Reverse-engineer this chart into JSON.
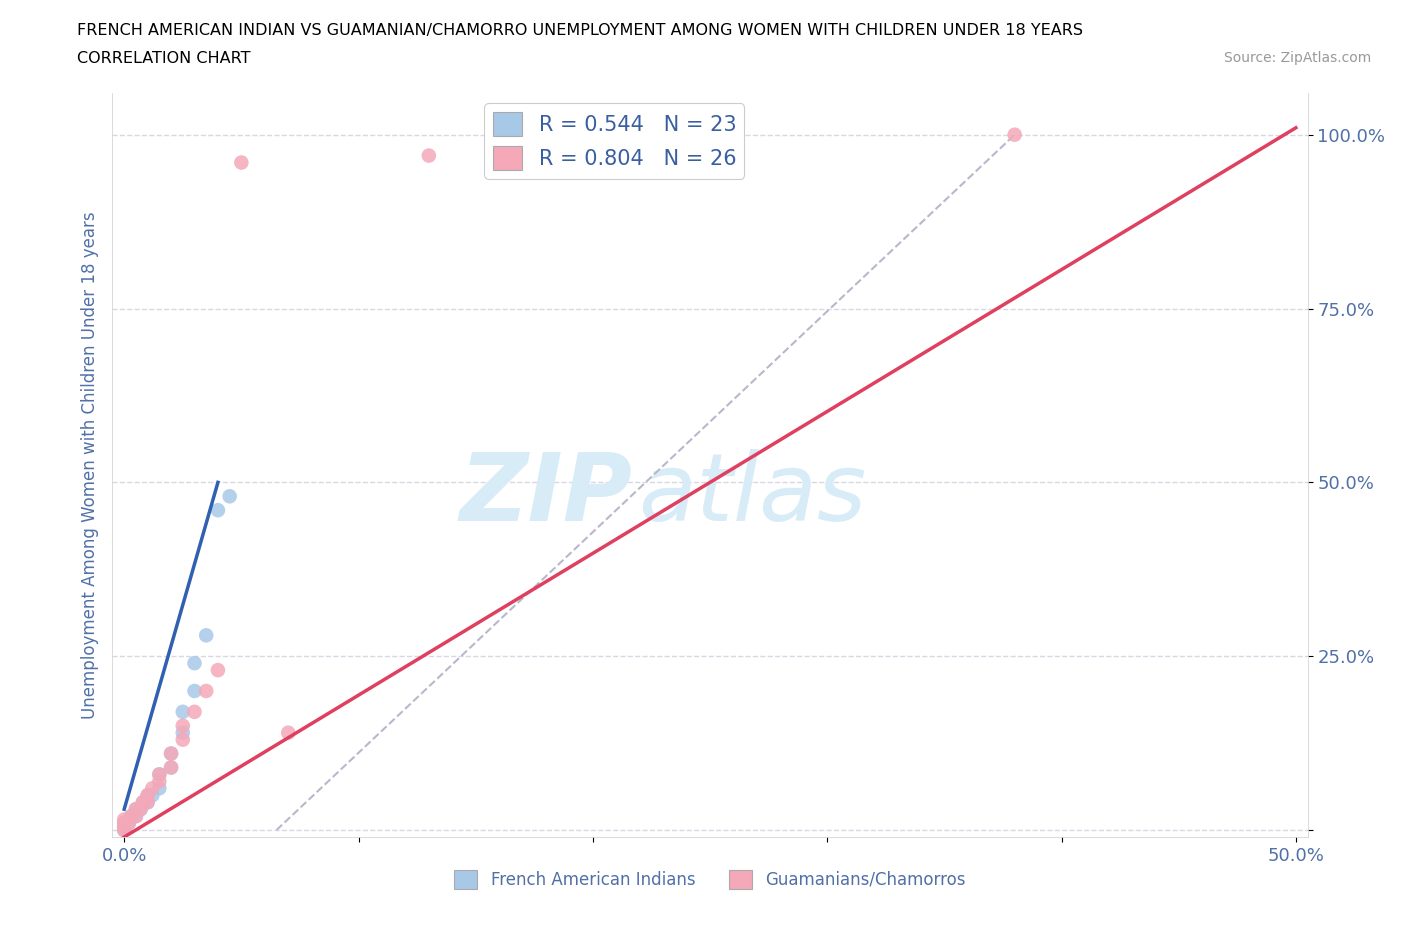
{
  "title_line1": "FRENCH AMERICAN INDIAN VS GUAMANIAN/CHAMORRO UNEMPLOYMENT AMONG WOMEN WITH CHILDREN UNDER 18 YEARS",
  "title_line2": "CORRELATION CHART",
  "source": "Source: ZipAtlas.com",
  "ylabel": "Unemployment Among Women with Children Under 18 years",
  "xlim": [
    -0.005,
    0.505
  ],
  "ylim": [
    -0.01,
    1.06
  ],
  "blue_R": 0.544,
  "blue_N": 23,
  "pink_R": 0.804,
  "pink_N": 26,
  "blue_color": "#a8c8e8",
  "pink_color": "#f4a8b8",
  "blue_line_color": "#3060b0",
  "pink_line_color": "#e04060",
  "dashed_line_color": "#b8b8cc",
  "watermark_color": "#d8ecf8",
  "legend_color": "#3a5fa0",
  "tick_color": "#5070a8",
  "axis_label_color": "#5070a8",
  "grid_color": "#d8d8e4",
  "blue_scatter": [
    [
      0.0,
      0.0
    ],
    [
      0.0,
      0.005
    ],
    [
      0.0,
      0.01
    ],
    [
      0.002,
      0.01
    ],
    [
      0.003,
      0.02
    ],
    [
      0.005,
      0.02
    ],
    [
      0.005,
      0.03
    ],
    [
      0.007,
      0.03
    ],
    [
      0.008,
      0.04
    ],
    [
      0.01,
      0.04
    ],
    [
      0.01,
      0.05
    ],
    [
      0.012,
      0.05
    ],
    [
      0.015,
      0.06
    ],
    [
      0.015,
      0.08
    ],
    [
      0.02,
      0.09
    ],
    [
      0.02,
      0.11
    ],
    [
      0.025,
      0.14
    ],
    [
      0.025,
      0.17
    ],
    [
      0.03,
      0.2
    ],
    [
      0.03,
      0.24
    ],
    [
      0.035,
      0.28
    ],
    [
      0.04,
      0.46
    ],
    [
      0.045,
      0.48
    ]
  ],
  "pink_scatter": [
    [
      0.0,
      0.0
    ],
    [
      0.0,
      0.005
    ],
    [
      0.0,
      0.01
    ],
    [
      0.0,
      0.015
    ],
    [
      0.002,
      0.01
    ],
    [
      0.003,
      0.02
    ],
    [
      0.005,
      0.02
    ],
    [
      0.005,
      0.03
    ],
    [
      0.007,
      0.03
    ],
    [
      0.008,
      0.04
    ],
    [
      0.01,
      0.04
    ],
    [
      0.01,
      0.05
    ],
    [
      0.012,
      0.06
    ],
    [
      0.015,
      0.07
    ],
    [
      0.015,
      0.08
    ],
    [
      0.02,
      0.09
    ],
    [
      0.02,
      0.11
    ],
    [
      0.025,
      0.13
    ],
    [
      0.025,
      0.15
    ],
    [
      0.03,
      0.17
    ],
    [
      0.035,
      0.2
    ],
    [
      0.04,
      0.23
    ],
    [
      0.05,
      0.96
    ],
    [
      0.13,
      0.97
    ],
    [
      0.38,
      1.0
    ],
    [
      0.07,
      0.14
    ]
  ],
  "blue_line": [
    [
      0.0,
      0.03
    ],
    [
      0.04,
      0.5
    ]
  ],
  "pink_line": [
    [
      0.0,
      -0.01
    ],
    [
      0.5,
      1.01
    ]
  ],
  "dashed_line": [
    [
      0.065,
      0.0
    ],
    [
      0.38,
      1.0
    ]
  ]
}
